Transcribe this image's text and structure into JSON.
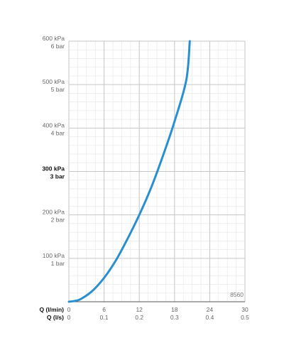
{
  "chart_data": {
    "type": "line",
    "x_axis": {
      "label_primary": "Q (l/min)",
      "label_secondary": "Q (l/s)",
      "ticks_primary": [
        "0",
        "6",
        "12",
        "18",
        "24",
        "30"
      ],
      "ticks_secondary": [
        "0",
        "0.1",
        "0.2",
        "0.3",
        "0.4",
        "0.5"
      ],
      "range": [
        0,
        30
      ]
    },
    "y_axis": {
      "range": [
        0,
        600
      ],
      "ticks": [
        {
          "value": 100,
          "kpa": "100 kPa",
          "bar": "1 bar",
          "emphasis": false
        },
        {
          "value": 200,
          "kpa": "200 kPa",
          "bar": "2 bar",
          "emphasis": false
        },
        {
          "value": 300,
          "kpa": "300 kPa",
          "bar": "3 bar",
          "emphasis": true
        },
        {
          "value": 400,
          "kpa": "400 kPa",
          "bar": "4 bar",
          "emphasis": false
        },
        {
          "value": 500,
          "kpa": "500 kPa",
          "bar": "5 bar",
          "emphasis": false
        },
        {
          "value": 600,
          "kpa": "600 kPa",
          "bar": "6 bar",
          "emphasis": false
        }
      ]
    },
    "grid": true,
    "series": [
      {
        "color": "#2a8fcf",
        "x": [
          0,
          1,
          2,
          4,
          6,
          8,
          10,
          12,
          14,
          16,
          18,
          20,
          20.6
        ],
        "y": [
          0,
          2,
          6,
          25,
          55,
          95,
          145,
          200,
          262,
          335,
          415,
          510,
          600
        ]
      }
    ],
    "annotation": "8560"
  },
  "colors": {
    "curve": "#2a8fcf",
    "grid_major": "#c6c6c6",
    "grid_minor": "#e9e9e9",
    "axis": "#555555"
  }
}
